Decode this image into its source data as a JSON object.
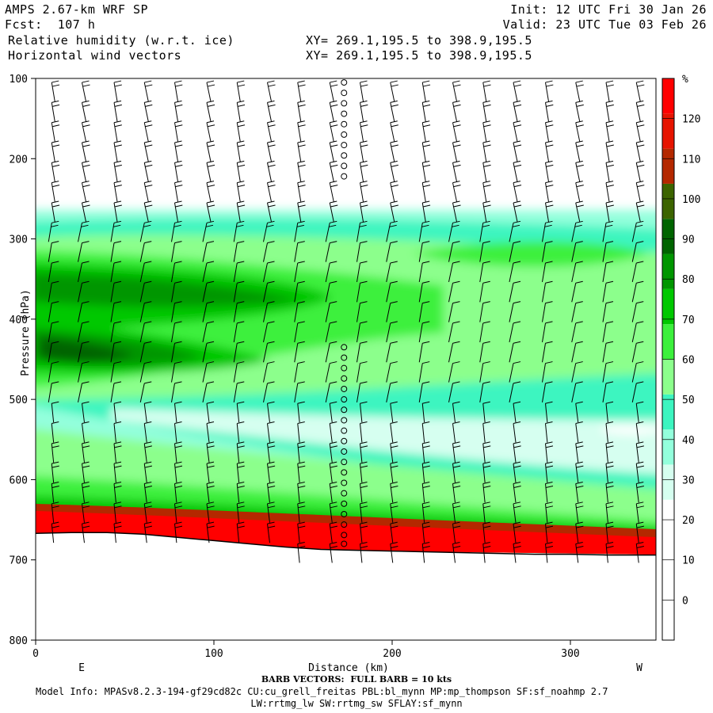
{
  "header": {
    "model": "AMPS 2.67-km WRF SP",
    "fcst": "Fcst:  107 h",
    "field1": "Relative humidity (w.r.t. ice)",
    "field2": "Horizontal wind vectors",
    "init": "Init: 12 UTC Fri 30 Jan 26",
    "valid": "Valid: 23 UTC Tue 03 Feb 26",
    "xy1": "XY= 269.1,195.5 to 398.9,195.5",
    "xy2": "XY= 269.1,195.5 to 398.9,195.5"
  },
  "footer": {
    "barb_note": "BARB VECTORS:  FULL BARB = 10 kts",
    "model_info": "Model Info: MPASv8.2.3-194-gf29cd82c CU:cu_grell_freitas PBL:bl_mynn MP:mp_thompson SF:sf_noahmp 2.7",
    "model_info2": "LW:rrtmg_lw SW:rrtmg_sw SFLAY:sf_mynn"
  },
  "chart_data": {
    "type": "heatmap",
    "title": "Relative humidity (w.r.t. ice)",
    "xlabel": "Distance (km)",
    "ylabel": "Pressure (hPa)",
    "xlim": [
      0,
      348
    ],
    "ylim": [
      800,
      100
    ],
    "x_ticks": [
      0,
      100,
      200,
      300
    ],
    "y_ticks": [
      100,
      200,
      300,
      400,
      500,
      600,
      700,
      800
    ],
    "x_end_labels": {
      "left": "E",
      "right": "W"
    },
    "colorbar": {
      "unit": "%",
      "labels": [
        0,
        10,
        20,
        30,
        40,
        50,
        60,
        70,
        80,
        90,
        100,
        110,
        120
      ],
      "colors": [
        "#ffffff",
        "#ffffff",
        "#ffffff",
        "#ffffff",
        "#d6fff0",
        "#93ffdc",
        "#3cf5c0",
        "#8cff8c",
        "#3cf03c",
        "#00c800",
        "#009600",
        "#006400",
        "#3c6400",
        "#b42800",
        "#e61400",
        "#ff0000"
      ]
    },
    "surface_pressure": [
      [
        0,
        667
      ],
      [
        20,
        666
      ],
      [
        40,
        666
      ],
      [
        60,
        668
      ],
      [
        80,
        672
      ],
      [
        100,
        676
      ],
      [
        120,
        680
      ],
      [
        140,
        684
      ],
      [
        160,
        687
      ],
      [
        180,
        688
      ],
      [
        200,
        689
      ],
      [
        220,
        690
      ],
      [
        240,
        691
      ],
      [
        260,
        692
      ],
      [
        280,
        693
      ],
      [
        300,
        693
      ],
      [
        320,
        694
      ],
      [
        348,
        694
      ]
    ],
    "calm_column_x": 173,
    "barb_x": [
      9,
      26,
      44,
      61,
      78,
      96,
      113,
      130,
      147,
      165,
      182,
      199,
      217,
      234,
      251,
      268,
      286,
      303,
      320,
      337
    ],
    "barb_levels": [
      105,
      130,
      155,
      180,
      205,
      230,
      255,
      280,
      305,
      330,
      355,
      380,
      405,
      430,
      455,
      480,
      505,
      530,
      555,
      580,
      605,
      630,
      655,
      680
    ]
  }
}
